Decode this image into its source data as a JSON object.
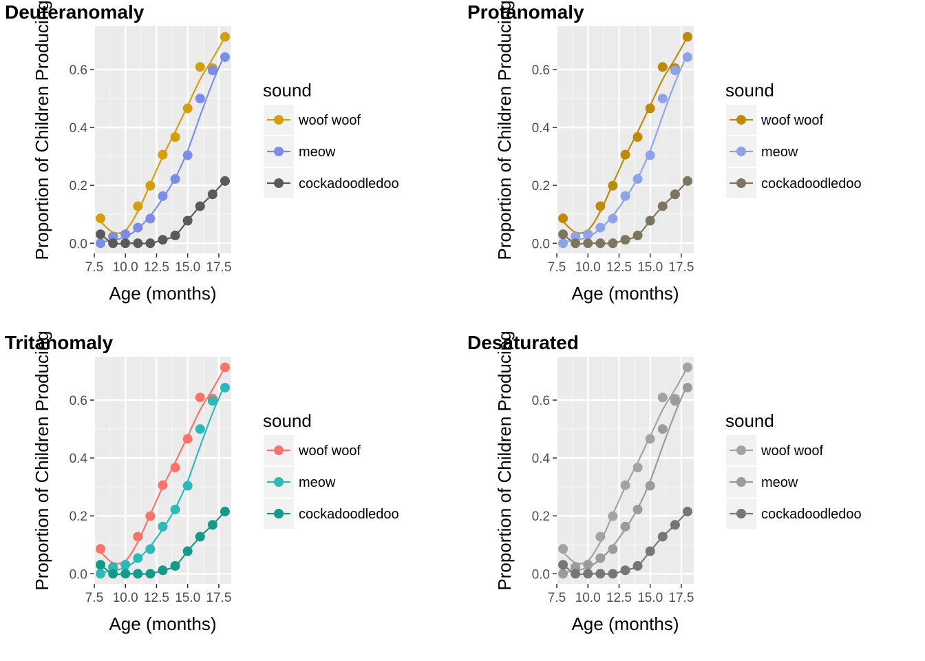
{
  "chart_data": [
    {
      "type": "line",
      "title": "Deuteranomaly",
      "xlabel": "Age (months)",
      "ylabel": "Proportion of Children Producing",
      "xlim": [
        7.5,
        18.5
      ],
      "ylim": [
        -0.035,
        0.75
      ],
      "xticks": [
        7.5,
        10.0,
        12.5,
        15.0,
        17.5
      ],
      "xtick_labels": [
        "7.5",
        "10.0",
        "12.5",
        "15.0",
        "17.5"
      ],
      "yticks": [
        0.0,
        0.2,
        0.4,
        0.6
      ],
      "ytick_labels": [
        "0.0",
        "0.2",
        "0.4",
        "0.6"
      ],
      "grid": true,
      "legend": {
        "title": "sound",
        "placement": "right"
      },
      "x": [
        8,
        9,
        10,
        11,
        12,
        13,
        14,
        15,
        16,
        17,
        18
      ],
      "series": [
        {
          "name": "woof woof",
          "color": "#D39E0F",
          "values": [
            0.086,
            0.023,
            0.031,
            0.128,
            0.199,
            0.306,
            0.367,
            0.466,
            0.609,
            0.605,
            0.713
          ],
          "smooth": [
            0.075,
            0.038,
            0.045,
            0.11,
            0.205,
            0.3,
            0.385,
            0.475,
            0.566,
            0.637,
            0.713
          ]
        },
        {
          "name": "meow",
          "color": "#7C8DE6",
          "values": [
            0.0,
            0.023,
            0.031,
            0.054,
            0.085,
            0.163,
            0.222,
            0.304,
            0.5,
            0.597,
            0.643
          ],
          "smooth": [
            0.005,
            0.01,
            0.022,
            0.05,
            0.095,
            0.155,
            0.225,
            0.32,
            0.44,
            0.555,
            0.655
          ]
        },
        {
          "name": "cockadoodledoo",
          "color": "#595A5C",
          "values": [
            0.031,
            0.0,
            0.0,
            0.0,
            0.0,
            0.012,
            0.027,
            0.078,
            0.128,
            0.169,
            0.215
          ],
          "smooth": [
            0.031,
            0.0,
            0.0,
            0.0,
            0.0,
            0.012,
            0.027,
            0.078,
            0.128,
            0.169,
            0.215
          ]
        }
      ]
    },
    {
      "type": "line",
      "title": "Protanomaly",
      "xlabel": "Age (months)",
      "ylabel": "Proportion of Children Producing",
      "xlim": [
        7.5,
        18.5
      ],
      "ylim": [
        -0.035,
        0.75
      ],
      "xticks": [
        7.5,
        10.0,
        12.5,
        15.0,
        17.5
      ],
      "xtick_labels": [
        "7.5",
        "10.0",
        "12.5",
        "15.0",
        "17.5"
      ],
      "yticks": [
        0.0,
        0.2,
        0.4,
        0.6
      ],
      "ytick_labels": [
        "0.0",
        "0.2",
        "0.4",
        "0.6"
      ],
      "grid": true,
      "legend": {
        "title": "sound",
        "placement": "right"
      },
      "x": [
        8,
        9,
        10,
        11,
        12,
        13,
        14,
        15,
        16,
        17,
        18
      ],
      "series": [
        {
          "name": "woof woof",
          "color": "#BE8A09",
          "values": [
            0.086,
            0.023,
            0.031,
            0.128,
            0.199,
            0.306,
            0.367,
            0.466,
            0.609,
            0.605,
            0.713
          ],
          "smooth": [
            0.075,
            0.038,
            0.045,
            0.11,
            0.205,
            0.3,
            0.385,
            0.475,
            0.566,
            0.637,
            0.713
          ]
        },
        {
          "name": "meow",
          "color": "#8FA3EA",
          "values": [
            0.0,
            0.023,
            0.031,
            0.054,
            0.085,
            0.163,
            0.222,
            0.304,
            0.5,
            0.597,
            0.643
          ],
          "smooth": [
            0.005,
            0.01,
            0.022,
            0.05,
            0.095,
            0.155,
            0.225,
            0.32,
            0.44,
            0.555,
            0.655
          ]
        },
        {
          "name": "cockadoodledoo",
          "color": "#7C7560",
          "values": [
            0.031,
            0.0,
            0.0,
            0.0,
            0.0,
            0.012,
            0.027,
            0.078,
            0.128,
            0.169,
            0.215
          ],
          "smooth": [
            0.031,
            0.0,
            0.0,
            0.0,
            0.0,
            0.012,
            0.027,
            0.078,
            0.128,
            0.169,
            0.215
          ]
        }
      ]
    },
    {
      "type": "line",
      "title": "Tritanomaly",
      "xlabel": "Age (months)",
      "ylabel": "Proportion of Children Producing",
      "xlim": [
        7.5,
        18.5
      ],
      "ylim": [
        -0.035,
        0.75
      ],
      "xticks": [
        7.5,
        10.0,
        12.5,
        15.0,
        17.5
      ],
      "xtick_labels": [
        "7.5",
        "10.0",
        "12.5",
        "15.0",
        "17.5"
      ],
      "yticks": [
        0.0,
        0.2,
        0.4,
        0.6
      ],
      "ytick_labels": [
        "0.0",
        "0.2",
        "0.4",
        "0.6"
      ],
      "grid": true,
      "legend": {
        "title": "sound",
        "placement": "right"
      },
      "x": [
        8,
        9,
        10,
        11,
        12,
        13,
        14,
        15,
        16,
        17,
        18
      ],
      "series": [
        {
          "name": "woof woof",
          "color": "#F8736A",
          "values": [
            0.086,
            0.023,
            0.031,
            0.128,
            0.199,
            0.306,
            0.367,
            0.466,
            0.609,
            0.605,
            0.713
          ],
          "smooth": [
            0.075,
            0.038,
            0.045,
            0.11,
            0.205,
            0.3,
            0.385,
            0.475,
            0.566,
            0.637,
            0.713
          ]
        },
        {
          "name": "meow",
          "color": "#2DB9B9",
          "values": [
            0.0,
            0.023,
            0.031,
            0.054,
            0.085,
            0.163,
            0.222,
            0.304,
            0.5,
            0.597,
            0.643
          ],
          "smooth": [
            0.005,
            0.01,
            0.022,
            0.05,
            0.095,
            0.155,
            0.225,
            0.32,
            0.44,
            0.555,
            0.655
          ]
        },
        {
          "name": "cockadoodledoo",
          "color": "#139A8A",
          "values": [
            0.031,
            0.0,
            0.0,
            0.0,
            0.0,
            0.012,
            0.027,
            0.078,
            0.128,
            0.169,
            0.215
          ],
          "smooth": [
            0.031,
            0.0,
            0.0,
            0.0,
            0.0,
            0.012,
            0.027,
            0.078,
            0.128,
            0.169,
            0.215
          ]
        }
      ]
    },
    {
      "type": "line",
      "title": "Desaturated",
      "xlabel": "Age (months)",
      "ylabel": "Proportion of Children Producing",
      "xlim": [
        7.5,
        18.5
      ],
      "ylim": [
        -0.035,
        0.75
      ],
      "xticks": [
        7.5,
        10.0,
        12.5,
        15.0,
        17.5
      ],
      "xtick_labels": [
        "7.5",
        "10.0",
        "12.5",
        "15.0",
        "17.5"
      ],
      "yticks": [
        0.0,
        0.2,
        0.4,
        0.6
      ],
      "ytick_labels": [
        "0.0",
        "0.2",
        "0.4",
        "0.6"
      ],
      "grid": true,
      "legend": {
        "title": "sound",
        "placement": "right"
      },
      "x": [
        8,
        9,
        10,
        11,
        12,
        13,
        14,
        15,
        16,
        17,
        18
      ],
      "series": [
        {
          "name": "woof woof",
          "color": "#A3A3A3",
          "values": [
            0.086,
            0.023,
            0.031,
            0.128,
            0.199,
            0.306,
            0.367,
            0.466,
            0.609,
            0.605,
            0.713
          ],
          "smooth": [
            0.075,
            0.038,
            0.045,
            0.11,
            0.205,
            0.3,
            0.385,
            0.475,
            0.566,
            0.637,
            0.713
          ]
        },
        {
          "name": "meow",
          "color": "#9B9B9B",
          "values": [
            0.0,
            0.023,
            0.031,
            0.054,
            0.085,
            0.163,
            0.222,
            0.304,
            0.5,
            0.597,
            0.643
          ],
          "smooth": [
            0.005,
            0.01,
            0.022,
            0.05,
            0.095,
            0.155,
            0.225,
            0.32,
            0.44,
            0.555,
            0.655
          ]
        },
        {
          "name": "cockadoodledoo",
          "color": "#767676",
          "values": [
            0.031,
            0.0,
            0.0,
            0.0,
            0.0,
            0.012,
            0.027,
            0.078,
            0.128,
            0.169,
            0.215
          ],
          "smooth": [
            0.031,
            0.0,
            0.0,
            0.0,
            0.0,
            0.012,
            0.027,
            0.078,
            0.128,
            0.169,
            0.215
          ]
        }
      ]
    }
  ]
}
